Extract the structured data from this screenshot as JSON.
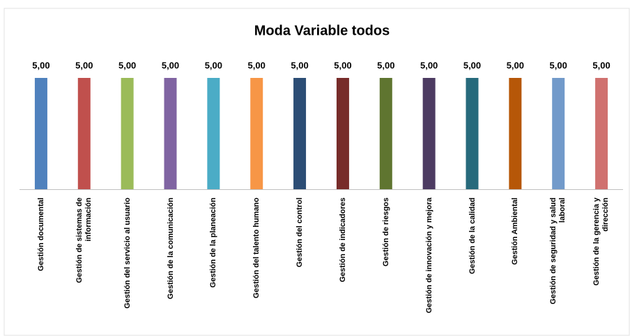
{
  "chart_data": {
    "type": "bar",
    "title": "Moda Variable todos",
    "categories": [
      "Gestión documental",
      "Gestión de sistemas de información",
      "Gestión del servicio al usuario",
      "Gestión de la comunicación",
      "Gestión de la planeación",
      "Gestión del talento humano",
      "Gestión del control",
      "Gestión de indicadores",
      "Gestión de riesgos",
      "Gestión de innovación y mejora",
      "Gestión de la calidad",
      "Gestión Ambiental",
      "Gestión de seguridad y salud laboral",
      "Gestión de la gerencia y dirección"
    ],
    "values": [
      5,
      5,
      5,
      5,
      5,
      5,
      5,
      5,
      5,
      5,
      5,
      5,
      5,
      5
    ],
    "value_labels": [
      "5,00",
      "5,00",
      "5,00",
      "5,00",
      "5,00",
      "5,00",
      "5,00",
      "5,00",
      "5,00",
      "5,00",
      "5,00",
      "5,00",
      "5,00",
      "5,00"
    ],
    "colors": [
      "#4f81bd",
      "#c0504d",
      "#9bbb59",
      "#8064a2",
      "#4bacc6",
      "#f79646",
      "#2c4d75",
      "#772c2a",
      "#5f7530",
      "#4d3b62",
      "#276a7c",
      "#b65708",
      "#729aca",
      "#d0716f"
    ],
    "ylim": [
      0,
      5
    ]
  }
}
